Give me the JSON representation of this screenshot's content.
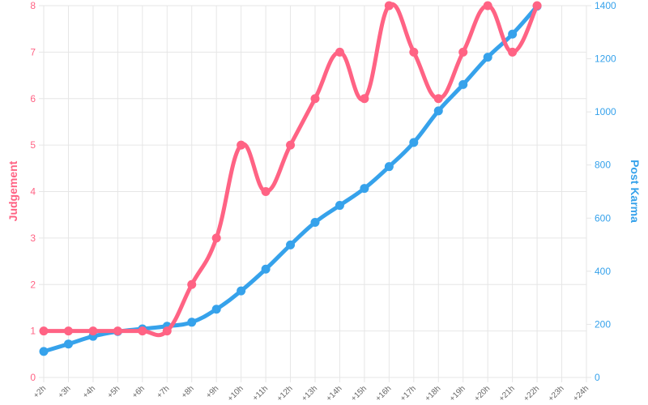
{
  "chart_data": {
    "type": "line",
    "x": [
      "+2h",
      "+3h",
      "+4h",
      "+5h",
      "+6h",
      "+7h",
      "+8h",
      "+9h",
      "+10h",
      "+11h",
      "+12h",
      "+13h",
      "+14h",
      "+15h",
      "+16h",
      "+17h",
      "+18h",
      "+19h",
      "+20h",
      "+21h",
      "+22h",
      "+23h",
      "+24h"
    ],
    "series": [
      {
        "name": "Judgement",
        "axis": "left",
        "color": "#ff6384",
        "values": [
          1,
          1,
          1,
          1,
          1,
          1,
          2,
          3,
          5,
          4,
          5,
          6,
          7,
          6,
          8,
          7,
          6,
          7,
          8,
          7,
          8,
          null,
          null
        ]
      },
      {
        "name": "Post Karma",
        "axis": "right",
        "color": "#36a2eb",
        "values": [
          98,
          126,
          155,
          173,
          183,
          193,
          208,
          257,
          326,
          408,
          499,
          584,
          648,
          712,
          794,
          885,
          1004,
          1103,
          1206,
          1293,
          1398,
          null,
          null
        ]
      }
    ],
    "ylabel_left": "Judgement",
    "ylabel_right": "Post Karma",
    "ylim_left": [
      0,
      8
    ],
    "ylim_right": [
      0,
      1400
    ],
    "yticks_left": [
      "0",
      "1",
      "2",
      "3",
      "4",
      "5",
      "6",
      "7",
      "8"
    ],
    "yticks_right": [
      "0",
      "200",
      "400",
      "600",
      "800",
      "1000",
      "1200",
      "1400"
    ],
    "grid": true,
    "legend": "none"
  },
  "colors": {
    "grid": "#e6e6e6",
    "left_axis": "#ff6384",
    "right_axis": "#36a2eb",
    "x_ticks": "#666666"
  }
}
